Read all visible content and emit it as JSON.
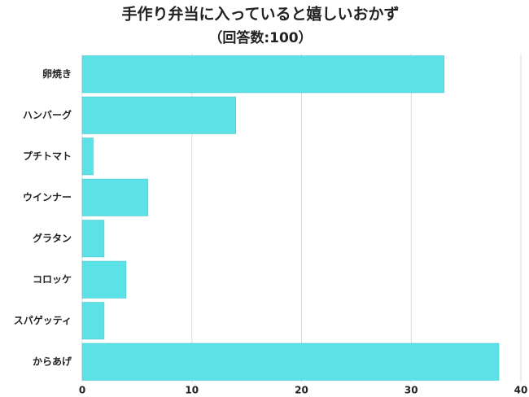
{
  "chart_data": {
    "type": "bar",
    "orientation": "horizontal",
    "title": "手作り弁当に入っていると嬉しいおかず",
    "subtitle": "（回答数:100）",
    "categories": [
      "卵焼き",
      "ハンバーグ",
      "プチトマト",
      "ウインナー",
      "グラタン",
      "コロッケ",
      "スパゲッティ",
      "からあげ"
    ],
    "values": [
      33,
      14,
      1,
      6,
      2,
      4,
      2,
      38
    ],
    "color": "#5ce1e6",
    "xlim": [
      0,
      40
    ],
    "xticks": [
      0,
      10,
      20,
      30,
      40
    ],
    "grid": true
  }
}
